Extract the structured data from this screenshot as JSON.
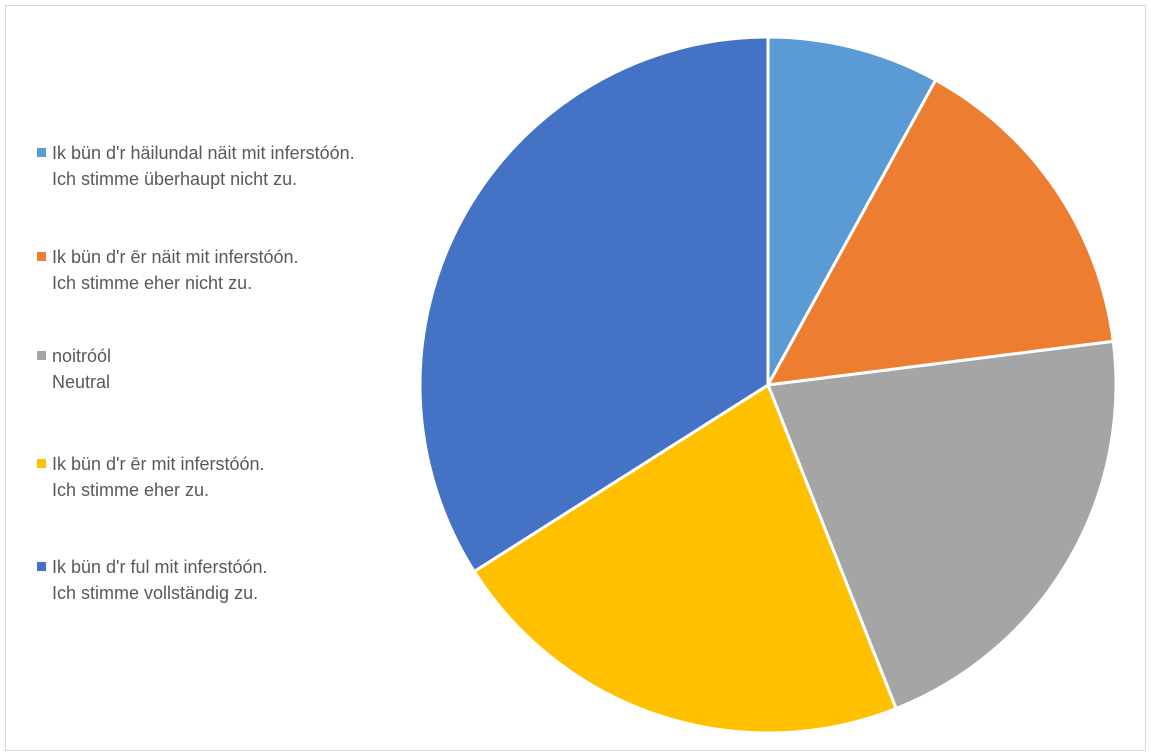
{
  "chart_data": {
    "type": "pie",
    "title": "",
    "legend_position": "left",
    "slices": [
      {
        "label": "Ik bün d'r häilundal näit mit inferstóón.\nIch stimme überhaupt nicht zu.",
        "value": 8,
        "color": "#5B9BD5"
      },
      {
        "label": "Ik bün d'r ēr näit mit inferstóón.\nIch stimme eher nicht zu.",
        "value": 15,
        "color": "#ED7D31"
      },
      {
        "label": "noitróól\nNeutral",
        "value": 21,
        "color": "#A5A5A5"
      },
      {
        "label": "Ik bün d'r ēr mit inferstóón.\nIch stimme eher zu.",
        "value": 22,
        "color": "#FFC000"
      },
      {
        "label": "Ik bün d'r ful mit inferstóón.\nIch stimme vollständig zu.",
        "value": 34,
        "color": "#4472C4"
      }
    ]
  }
}
